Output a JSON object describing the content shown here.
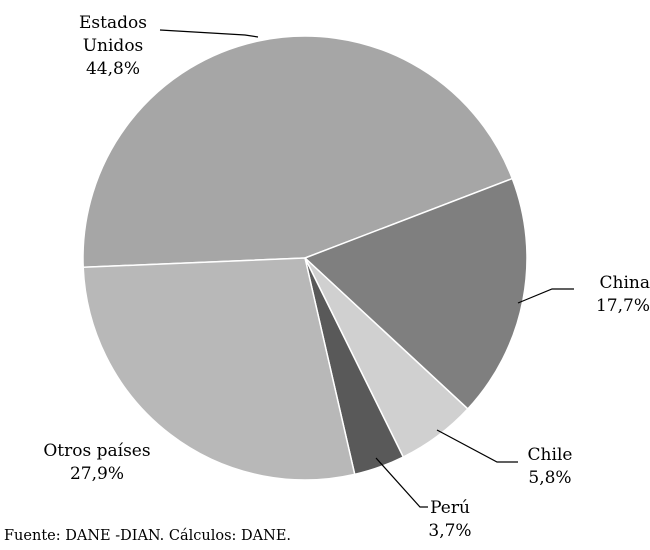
{
  "chart_data": {
    "type": "pie",
    "categories": [
      "Estados Unidos",
      "China",
      "Chile",
      "Perú",
      "Otros países"
    ],
    "values": [
      44.8,
      17.7,
      5.8,
      3.7,
      27.9
    ],
    "value_labels": [
      "44,8%",
      "17,7%",
      "5,8%",
      "3,7%",
      "27,9%"
    ],
    "colors": [
      "#a6a6a6",
      "#7f7f7f",
      "#d0d0d0",
      "#595959",
      "#b8b8b8"
    ],
    "source": "Fuente: DANE -DIAN.  Cálculos: DANE."
  }
}
